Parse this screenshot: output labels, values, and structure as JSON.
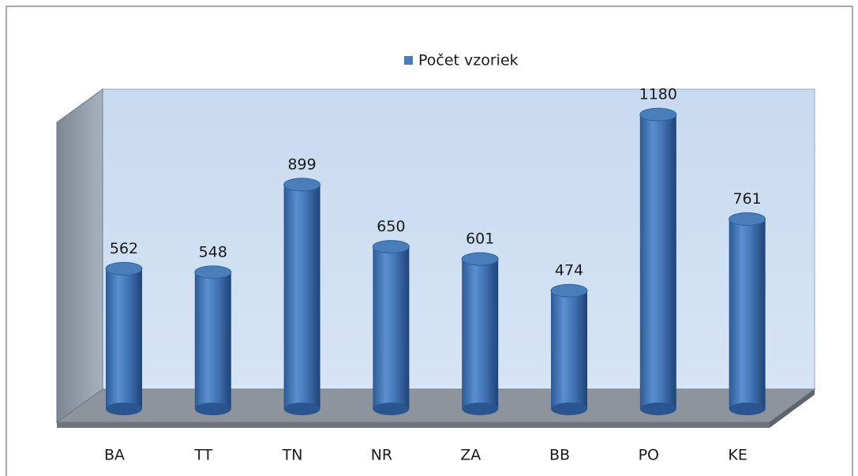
{
  "chart_data": {
    "type": "bar3d",
    "categories": [
      "BA",
      "TT",
      "TN",
      "NR",
      "ZA",
      "BB",
      "PO",
      "KE"
    ],
    "series": [
      {
        "name": "Počet vzoriek",
        "color": "#4a7ebb",
        "values": [
          562,
          548,
          899,
          650,
          601,
          474,
          1180,
          761
        ]
      }
    ]
  }
}
